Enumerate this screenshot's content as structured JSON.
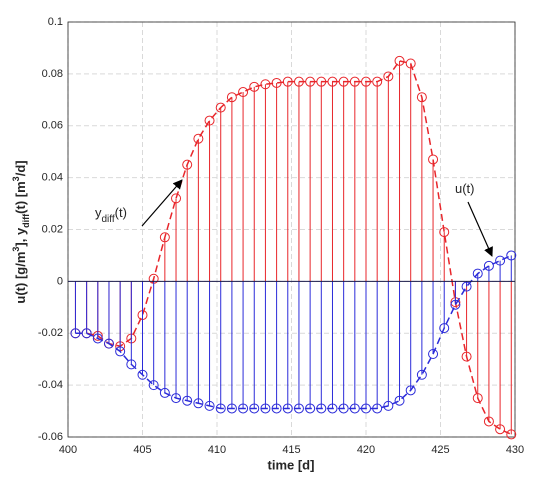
{
  "chart_data": {
    "type": "stem",
    "xlabel": "time [d]",
    "ylabel_parts": [
      "u(t)  [g/m",
      "3",
      "],  y",
      "diff",
      "(t)  [m",
      "3",
      "/d]"
    ],
    "annotations": [
      {
        "parts": [
          "y",
          "diff",
          "(t)"
        ]
      },
      {
        "parts": [
          "u(t)"
        ]
      }
    ],
    "x": [
      400.5,
      401.25,
      402,
      402.75,
      403.5,
      404.25,
      405,
      405.75,
      406.5,
      407.25,
      408,
      408.75,
      409.5,
      410.25,
      411,
      411.75,
      412.5,
      413.25,
      414,
      414.75,
      415.5,
      416.25,
      417,
      417.75,
      418.5,
      419.25,
      420,
      420.75,
      421.5,
      422.25,
      423,
      423.75,
      424.5,
      425.25,
      426,
      426.75,
      427.5,
      428.25,
      429,
      429.75
    ],
    "series": [
      {
        "color": "#e8262b",
        "values": [
          -0.02,
          -0.02,
          -0.021,
          -0.024,
          -0.025,
          -0.022,
          -0.013,
          0.001,
          0.017,
          0.032,
          0.045,
          0.055,
          0.062,
          0.067,
          0.071,
          0.073,
          0.075,
          0.076,
          0.0765,
          0.077,
          0.077,
          0.077,
          0.077,
          0.077,
          0.077,
          0.077,
          0.077,
          0.077,
          0.079,
          0.085,
          0.084,
          0.071,
          0.047,
          0.019,
          -0.008,
          -0.029,
          -0.045,
          -0.054,
          -0.057,
          -0.059
        ]
      },
      {
        "color": "#2b2bd9",
        "values": [
          -0.02,
          -0.02,
          -0.022,
          -0.024,
          -0.027,
          -0.032,
          -0.036,
          -0.04,
          -0.043,
          -0.045,
          -0.046,
          -0.047,
          -0.048,
          -0.049,
          -0.049,
          -0.049,
          -0.049,
          -0.049,
          -0.049,
          -0.049,
          -0.049,
          -0.049,
          -0.049,
          -0.049,
          -0.049,
          -0.049,
          -0.049,
          -0.049,
          -0.048,
          -0.046,
          -0.042,
          -0.036,
          -0.028,
          -0.018,
          -0.009,
          -0.002,
          0.003,
          0.006,
          0.008,
          0.01
        ]
      }
    ],
    "xlim": [
      400,
      430
    ],
    "xticks": [
      400,
      405,
      410,
      415,
      420,
      425,
      430
    ],
    "ylim": [
      -0.06,
      0.1
    ],
    "yticks": [
      -0.06,
      -0.04,
      -0.02,
      0,
      0.02,
      0.04,
      0.06,
      0.08,
      0.1
    ],
    "grid": true
  }
}
